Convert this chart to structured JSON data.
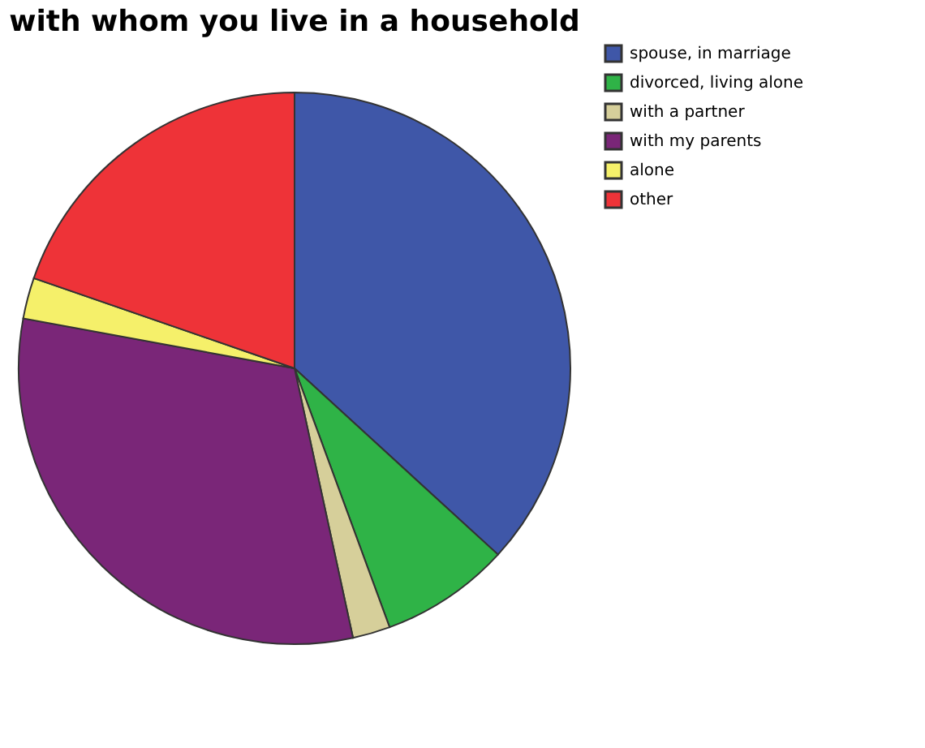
{
  "chart_data": {
    "type": "pie",
    "title": "with whom you live in a household",
    "categories": [
      "spouse, in marriage",
      "divorced, living alone",
      "with a partner",
      "with my parents",
      "alone",
      "other"
    ],
    "values": [
      36.8,
      7.6,
      2.2,
      31.3,
      2.4,
      19.7
    ],
    "colors": [
      "#3f57a8",
      "#2fb347",
      "#d6cf9a",
      "#7a2678",
      "#f5f06a",
      "#ee3338"
    ],
    "legend": "top right"
  }
}
